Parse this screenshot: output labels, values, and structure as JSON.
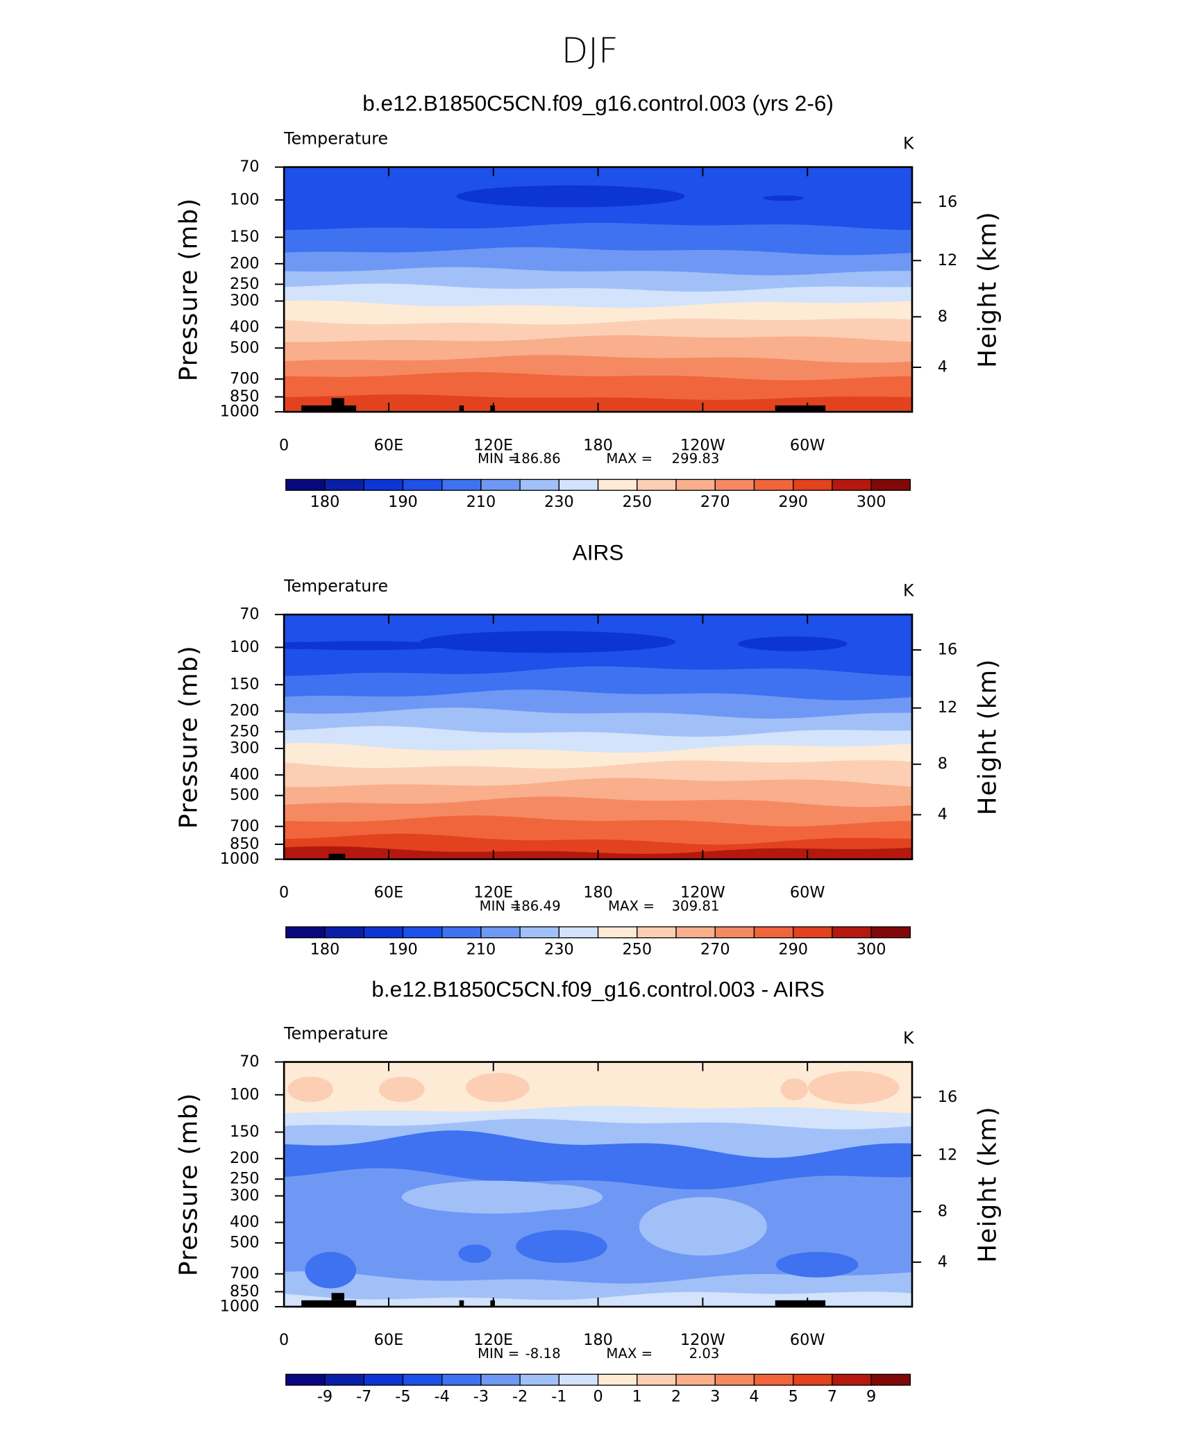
{
  "title": "DJF",
  "chart_data": [
    {
      "type": "contour",
      "title": "b.e12.B1850C5CN.f09_g16.control.003 (yrs 2-6)",
      "field_label": "Temperature",
      "units": "K",
      "ylabel": "Pressure (mb)",
      "y2label": "Height (km)",
      "xlim": [
        0,
        360
      ],
      "xticks": [
        0,
        {
          "value": 60,
          "label": "60E"
        },
        {
          "value": 120,
          "label": "120E"
        },
        180,
        {
          "value": 240,
          "label": "120W"
        },
        {
          "value": 300,
          "label": "60W"
        }
      ],
      "ylim": [
        1000,
        70
      ],
      "ylog": true,
      "yticks": [
        70,
        100,
        150,
        200,
        250,
        300,
        400,
        500,
        700,
        850,
        1000
      ],
      "y2ticks": [
        4,
        8,
        12,
        16
      ],
      "stats": [
        {
          "label": "MIN =",
          "value": 186.86
        },
        {
          "label": "MAX =",
          "value": 299.83
        }
      ],
      "colorbar": {
        "colors": [
          "#08087e",
          "#0a1fa8",
          "#0c35d4",
          "#1e50ea",
          "#3e72f0",
          "#6e98f4",
          "#a2c0f8",
          "#d2e3fb",
          "#fdebd6",
          "#fccfb4",
          "#f9ae8c",
          "#f58a62",
          "#f0653c",
          "#e2421e",
          "#b4180e",
          "#800808"
        ],
        "labels": [
          180,
          190,
          210,
          230,
          250,
          270,
          290,
          300
        ]
      }
    },
    {
      "type": "contour",
      "title": "AIRS",
      "field_label": "Temperature",
      "units": "K",
      "ylabel": "Pressure (mb)",
      "y2label": "Height (km)",
      "xlim": [
        0,
        360
      ],
      "xticks": [
        0,
        {
          "value": 60,
          "label": "60E"
        },
        {
          "value": 120,
          "label": "120E"
        },
        180,
        {
          "value": 240,
          "label": "120W"
        },
        {
          "value": 300,
          "label": "60W"
        }
      ],
      "ylim": [
        1000,
        70
      ],
      "ylog": true,
      "yticks": [
        70,
        100,
        150,
        200,
        250,
        300,
        400,
        500,
        700,
        850,
        1000
      ],
      "y2ticks": [
        4,
        8,
        12,
        16
      ],
      "stats": [
        {
          "label": "MIN =",
          "value": 186.49
        },
        {
          "label": "MAX =",
          "value": 309.81
        }
      ],
      "colorbar": {
        "colors": [
          "#08087e",
          "#0a1fa8",
          "#0c35d4",
          "#1e50ea",
          "#3e72f0",
          "#6e98f4",
          "#a2c0f8",
          "#d2e3fb",
          "#fdebd6",
          "#fccfb4",
          "#f9ae8c",
          "#f58a62",
          "#f0653c",
          "#e2421e",
          "#b4180e",
          "#800808"
        ],
        "labels": [
          180,
          190,
          210,
          230,
          250,
          270,
          290,
          300
        ]
      }
    },
    {
      "type": "contour",
      "title": "b.e12.B1850C5CN.f09_g16.control.003 - AIRS",
      "field_label": "Temperature",
      "units": "K",
      "ylabel": "Pressure (mb)",
      "y2label": "Height (km)",
      "xlim": [
        0,
        360
      ],
      "xticks": [
        0,
        {
          "value": 60,
          "label": "60E"
        },
        {
          "value": 120,
          "label": "120E"
        },
        180,
        {
          "value": 240,
          "label": "120W"
        },
        {
          "value": 300,
          "label": "60W"
        }
      ],
      "ylim": [
        1000,
        70
      ],
      "ylog": true,
      "yticks": [
        70,
        100,
        150,
        200,
        250,
        300,
        400,
        500,
        700,
        850,
        1000
      ],
      "y2ticks": [
        4,
        8,
        12,
        16
      ],
      "stats": [
        {
          "label": "MIN =",
          "value": -8.18
        },
        {
          "label": "MAX =",
          "value": 2.03
        }
      ],
      "colorbar": {
        "colors": [
          "#08087e",
          "#0a1fa8",
          "#0c35d4",
          "#1e50ea",
          "#3e72f0",
          "#6e98f4",
          "#a2c0f8",
          "#d2e3fb",
          "#fdebd6",
          "#fccfb4",
          "#f9ae8c",
          "#f58a62",
          "#f0653c",
          "#e2421e",
          "#b4180e",
          "#800808"
        ],
        "labels": [
          -9,
          -7,
          -5,
          -4,
          -3,
          -2,
          -1,
          0,
          1,
          2,
          3,
          4,
          5,
          7,
          9
        ]
      }
    }
  ]
}
